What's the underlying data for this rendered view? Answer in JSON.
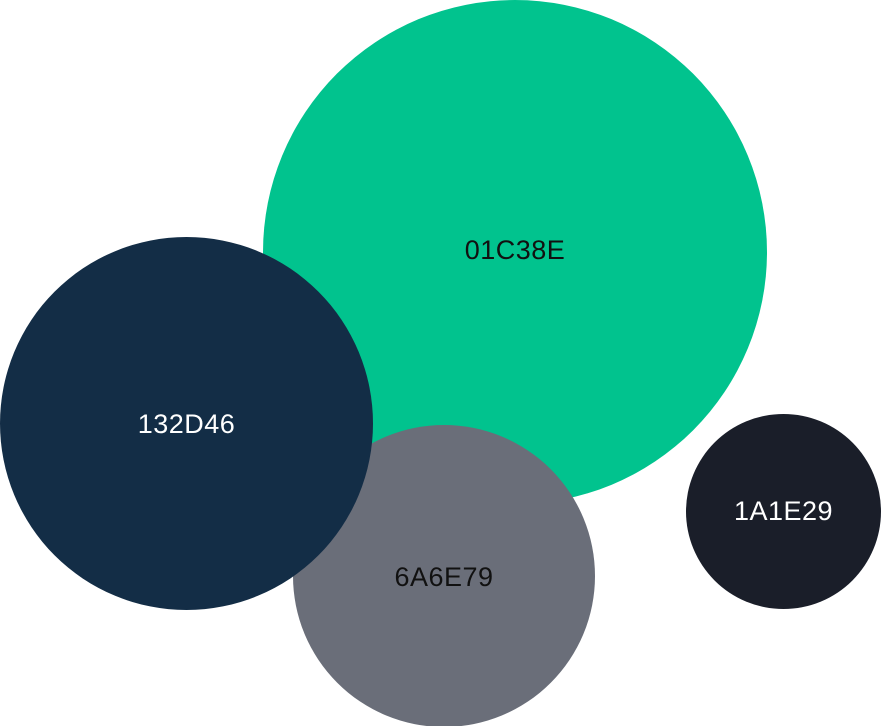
{
  "swatches": [
    {
      "label": "01C38E",
      "color": "#01C38E",
      "text_color": "#111111"
    },
    {
      "label": "132D46",
      "color": "#132D46",
      "text_color": "#FFFFFF"
    },
    {
      "label": "6A6E79",
      "color": "#6A6E79",
      "text_color": "#111111"
    },
    {
      "label": "1A1E29",
      "color": "#1A1E29",
      "text_color": "#FFFFFF"
    }
  ]
}
